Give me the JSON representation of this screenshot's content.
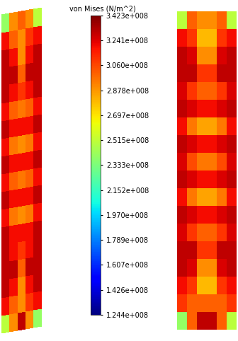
{
  "chart_data": {
    "type": "heatmap",
    "title": "von Mises (N/m^2)",
    "tick_labels": false,
    "colorbar_range": [
      124400000,
      342300000
    ],
    "colorbar_ticks": [
      {
        "value": 342300000,
        "label": "3.423e+008"
      },
      {
        "value": 324100000,
        "label": "3.241e+008"
      },
      {
        "value": 306000000,
        "label": "3.060e+008"
      },
      {
        "value": 287800000,
        "label": "2.878e+008"
      },
      {
        "value": 269700000,
        "label": "2.697e+008"
      },
      {
        "value": 251500000,
        "label": "2.515e+008"
      },
      {
        "value": 233300000,
        "label": "2.333e+008"
      },
      {
        "value": 215200000,
        "label": "2.152e+008"
      },
      {
        "value": 197000000,
        "label": "1.970e+008"
      },
      {
        "value": 178900000,
        "label": "1.789e+008"
      },
      {
        "value": 160700000,
        "label": "1.607e+008"
      },
      {
        "value": 142600000,
        "label": "1.426e+008"
      },
      {
        "value": 124400000,
        "label": "1.244e+008"
      }
    ],
    "panels": [
      {
        "cells": [
          [
            240000000,
            290000000,
            300000000,
            290000000,
            250000000
          ],
          [
            320000000,
            300000000,
            290000000,
            310000000,
            320000000
          ],
          [
            330000000,
            320000000,
            290000000,
            320000000,
            330000000
          ],
          [
            330000000,
            330000000,
            300000000,
            330000000,
            330000000
          ],
          [
            330000000,
            320000000,
            310000000,
            320000000,
            330000000
          ],
          [
            320000000,
            300000000,
            295000000,
            300000000,
            320000000
          ],
          [
            330000000,
            320000000,
            320000000,
            320000000,
            330000000
          ],
          [
            320000000,
            295000000,
            290000000,
            295000000,
            320000000
          ],
          [
            330000000,
            320000000,
            320000000,
            320000000,
            330000000
          ],
          [
            320000000,
            300000000,
            295000000,
            300000000,
            320000000
          ],
          [
            330000000,
            320000000,
            320000000,
            320000000,
            330000000
          ],
          [
            320000000,
            295000000,
            290000000,
            295000000,
            320000000
          ],
          [
            330000000,
            320000000,
            320000000,
            320000000,
            330000000
          ],
          [
            330000000,
            320000000,
            310000000,
            320000000,
            330000000
          ],
          [
            330000000,
            330000000,
            300000000,
            330000000,
            330000000
          ],
          [
            330000000,
            320000000,
            290000000,
            320000000,
            330000000
          ],
          [
            320000000,
            300000000,
            290000000,
            310000000,
            320000000
          ],
          [
            250000000,
            290000000,
            330000000,
            290000000,
            240000000
          ]
        ]
      },
      {
        "cells": [
          [
            250000000,
            300000000,
            290000000,
            290000000,
            300000000,
            250000000
          ],
          [
            320000000,
            310000000,
            280000000,
            280000000,
            310000000,
            320000000
          ],
          [
            330000000,
            325000000,
            290000000,
            290000000,
            325000000,
            330000000
          ],
          [
            330000000,
            330000000,
            310000000,
            310000000,
            330000000,
            330000000
          ],
          [
            325000000,
            310000000,
            300000000,
            300000000,
            310000000,
            325000000
          ],
          [
            330000000,
            325000000,
            320000000,
            320000000,
            325000000,
            330000000
          ],
          [
            320000000,
            295000000,
            285000000,
            285000000,
            295000000,
            320000000
          ],
          [
            330000000,
            325000000,
            320000000,
            320000000,
            325000000,
            330000000
          ],
          [
            325000000,
            305000000,
            295000000,
            295000000,
            305000000,
            325000000
          ],
          [
            330000000,
            325000000,
            320000000,
            320000000,
            325000000,
            330000000
          ],
          [
            320000000,
            295000000,
            285000000,
            285000000,
            295000000,
            320000000
          ],
          [
            330000000,
            325000000,
            320000000,
            320000000,
            325000000,
            330000000
          ],
          [
            325000000,
            310000000,
            300000000,
            300000000,
            310000000,
            325000000
          ],
          [
            330000000,
            330000000,
            310000000,
            310000000,
            330000000,
            330000000
          ],
          [
            330000000,
            325000000,
            290000000,
            290000000,
            325000000,
            330000000
          ],
          [
            320000000,
            310000000,
            280000000,
            280000000,
            310000000,
            320000000
          ],
          [
            310000000,
            300000000,
            300000000,
            300000000,
            300000000,
            310000000
          ],
          [
            240000000,
            300000000,
            330000000,
            330000000,
            300000000,
            250000000
          ]
        ]
      }
    ]
  }
}
